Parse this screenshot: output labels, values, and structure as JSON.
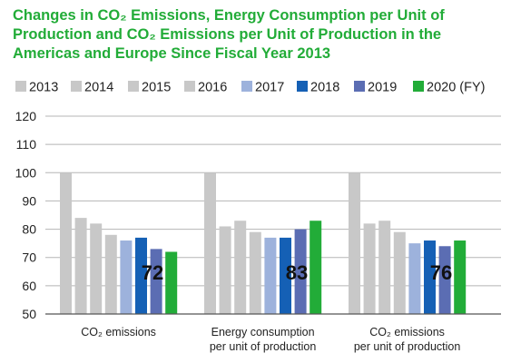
{
  "chart_data": {
    "type": "bar",
    "title": "Changes in CO₂ Emissions, Energy Consumption per Unit of Production and CO₂ Emissions per Unit of Production in the Americas and Europe Since Fiscal Year 2013",
    "xlabel": "",
    "ylabel": "",
    "ylim": [
      50,
      120
    ],
    "yticks": [
      "120",
      "110",
      "100",
      "90",
      "80",
      "70",
      "60",
      "50"
    ],
    "grid": true,
    "legend_position": "top",
    "categories": [
      [
        "CO₂ emissions"
      ],
      [
        "Energy consumption",
        "per unit of production"
      ],
      [
        "CO₂ emissions",
        "per unit of production"
      ]
    ],
    "series": [
      {
        "name": "2013",
        "color": "#c8c8c8",
        "values": [
          100,
          100,
          100
        ]
      },
      {
        "name": "2014",
        "color": "#c8c8c8",
        "values": [
          84,
          81,
          82
        ]
      },
      {
        "name": "2015",
        "color": "#c8c8c8",
        "values": [
          82,
          83,
          83
        ]
      },
      {
        "name": "2016",
        "color": "#c8c8c8",
        "values": [
          78,
          79,
          79
        ]
      },
      {
        "name": "2017",
        "color": "#9db2dc",
        "values": [
          76,
          77,
          75
        ]
      },
      {
        "name": "2018",
        "color": "#1560b5",
        "values": [
          77,
          77,
          76
        ]
      },
      {
        "name": "2019",
        "color": "#5b6db3",
        "values": [
          73,
          80,
          74
        ]
      },
      {
        "name": "2020 (FY)",
        "color": "#22ac38",
        "values": [
          72,
          83,
          76
        ]
      }
    ],
    "data_labels": [
      "72",
      "83",
      "76"
    ]
  }
}
